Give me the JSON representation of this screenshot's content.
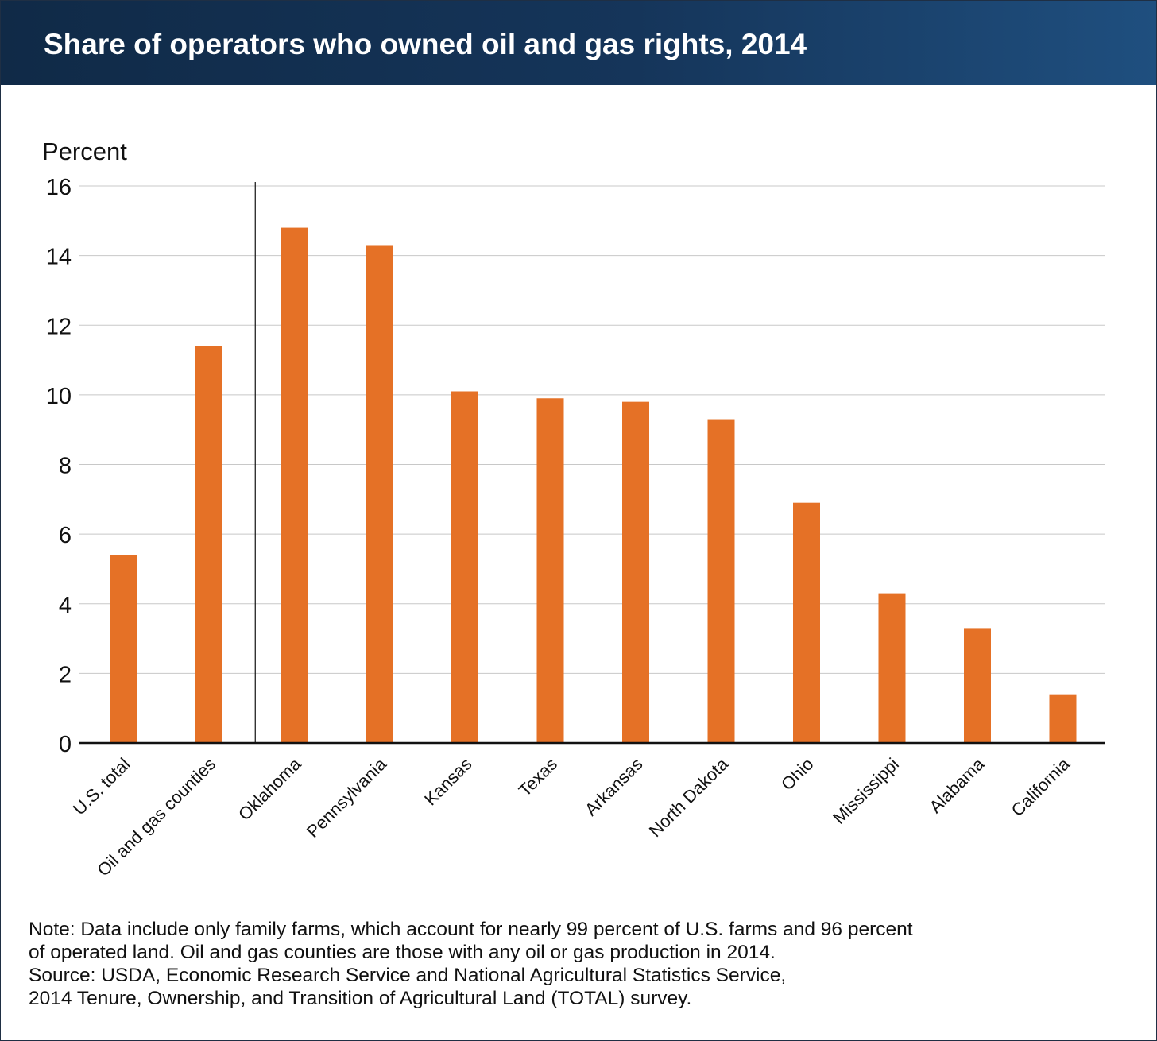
{
  "title": "Share of operators who owned oil and gas rights, 2014",
  "colors": {
    "header_start": "#102a47",
    "header_end": "#1f4f7f",
    "bar": "#e57126",
    "grid": "#c8c8c8"
  },
  "note_lines": [
    "Note: Data include only family farms, which account for nearly 99 percent of U.S. farms and 96 percent",
    "of operated land. Oil and gas counties are those with any oil or gas production in 2014.",
    "Source: USDA, Economic Research Service and National Agricultural Statistics Service,",
    "2014 Tenure, Ownership, and Transition of Agricultural Land (TOTAL) survey."
  ],
  "chart_data": {
    "type": "bar",
    "title": "Share of operators who owned oil and gas rights, 2014",
    "ylabel": "Percent",
    "xlabel": "",
    "ylim": [
      0,
      16
    ],
    "yticks": [
      0,
      2,
      4,
      6,
      8,
      10,
      12,
      14,
      16
    ],
    "grid": true,
    "categories": [
      "U.S. total",
      "Oil and gas counties",
      "Oklahoma",
      "Pennsylvania",
      "Kansas",
      "Texas",
      "Arkansas",
      "North Dakota",
      "Ohio",
      "Mississippi",
      "Alabama",
      "California"
    ],
    "values": [
      5.4,
      11.4,
      14.8,
      14.3,
      10.1,
      9.9,
      9.8,
      9.3,
      6.9,
      4.3,
      3.3,
      1.4
    ],
    "separator_after_category": "Oil and gas counties"
  }
}
